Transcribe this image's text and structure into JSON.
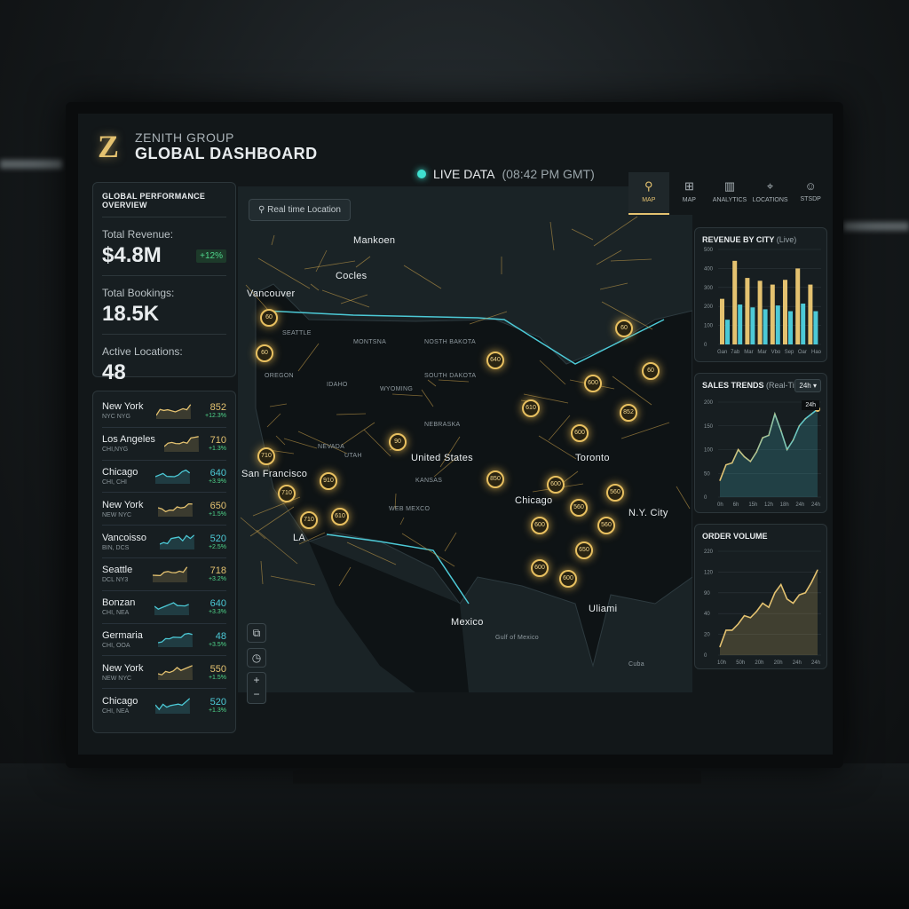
{
  "header": {
    "company": "ZENITH GROUP",
    "title": "GLOBAL DASHBOARD",
    "logo_letter": "Z",
    "live_label": "LIVE DATA",
    "live_time": "(08:42 PM GMT)"
  },
  "kpi": {
    "title": "GLOBAL PERFORMANCE OVERVIEW",
    "items": [
      {
        "label": "Total Revenue:",
        "value": "$4.8M",
        "badge": "+12%"
      },
      {
        "label": "Total Bookings:",
        "value": "18.5K"
      },
      {
        "label": "Active Locations:",
        "value": "48"
      }
    ]
  },
  "cities": [
    {
      "name": "New York",
      "sub": "NYC NYG",
      "value": "852",
      "change": "+12.3%",
      "trend": "gold"
    },
    {
      "name": "Los Angeles",
      "sub": "CHI,NYG",
      "value": "710",
      "change": "+1.3%",
      "trend": "gold"
    },
    {
      "name": "Chicago",
      "sub": "CHI, CHI",
      "value": "640",
      "change": "+3.9%",
      "trend": "teal"
    },
    {
      "name": "New York",
      "sub": "NEW NYC",
      "value": "650",
      "change": "+1.5%",
      "trend": "gold"
    },
    {
      "name": "Vancoisso",
      "sub": "BIN, DCS",
      "value": "520",
      "change": "+2.5%",
      "trend": "teal"
    },
    {
      "name": "Seattle",
      "sub": "DCL NY3",
      "value": "718",
      "change": "+3.2%",
      "trend": "gold"
    },
    {
      "name": "Bonzan",
      "sub": "CHI, NEA",
      "value": "640",
      "change": "+3.3%",
      "trend": "teal"
    },
    {
      "name": "Germaria",
      "sub": "CHI, OOA",
      "value": "48",
      "change": "+3.5%",
      "trend": "teal"
    },
    {
      "name": "New York",
      "sub": "NEW NYC",
      "value": "550",
      "change": "+1.5%",
      "trend": "gold"
    },
    {
      "name": "Chicago",
      "sub": "CHI, NEA",
      "value": "520",
      "change": "+1.3%",
      "trend": "teal"
    }
  ],
  "map": {
    "location_button": "Real time Location",
    "labels": [
      "Vancouver",
      "SEATTLE",
      "MONTSNA",
      "NOSTH BAKOTA",
      "SOUTH DAKOTA",
      "OREGON",
      "IDAHO",
      "WYOMING",
      "NEBRASKA",
      "NEVADA",
      "UTAH",
      "KANSAS",
      "WEB MEXCO",
      "United States",
      "Chicago",
      "San Francisco",
      "LA",
      "N.Y. City",
      "Toronto",
      "Mexico",
      "Gulf of Mexico",
      "Uliami",
      "Cuba",
      "Mankoen",
      "Cocles"
    ],
    "pins": [
      "60",
      "60",
      "710",
      "710",
      "710",
      "910",
      "610",
      "90",
      "640",
      "610",
      "850",
      "60",
      "852",
      "60",
      "600",
      "600",
      "600",
      "600",
      "600",
      "600",
      "560",
      "560",
      "560",
      "650"
    ]
  },
  "nav": [
    {
      "label": "MAP",
      "icon": "pin-icon",
      "active": true
    },
    {
      "label": "MAP",
      "icon": "map-icon"
    },
    {
      "label": "ANALYTICS",
      "icon": "bar-chart-icon"
    },
    {
      "label": "LOCATIONS",
      "icon": "location-icon"
    },
    {
      "label": "STSDP",
      "icon": "user-icon"
    }
  ],
  "colors": {
    "gold": "#e4c270",
    "teal": "#4cc9d6",
    "green": "#4fd68b",
    "bg": "#121719"
  },
  "chart_data": [
    {
      "type": "bar",
      "title": "REVENUE BY CITY",
      "subtitle": "(Live)",
      "categories": [
        "Gan",
        "7ab",
        "Mar",
        "Mar",
        "Vbo",
        "Sep",
        "Oar",
        "Hao"
      ],
      "series": [
        {
          "values": [
            240,
            440,
            350,
            335,
            315,
            340,
            400,
            315
          ],
          "color": "#e4c270"
        },
        {
          "values": [
            130,
            210,
            195,
            185,
            205,
            175,
            215,
            175
          ],
          "color": "#4cc9d6"
        }
      ],
      "yticks": [
        "0",
        "100",
        "200",
        "300",
        "400",
        "500"
      ],
      "ylim": [
        0,
        500
      ],
      "grid": true
    },
    {
      "type": "area",
      "title": "SALES TRENDS",
      "subtitle": "(Real-Time)",
      "range_select": "24h",
      "tooltip": "24h",
      "xticks": [
        "0h",
        "6h",
        "15h",
        "12h",
        "18h",
        "24h",
        "24h"
      ],
      "yticks": [
        "0",
        "50",
        "100",
        "150",
        "200"
      ],
      "ylim": [
        0,
        200
      ],
      "values": [
        35,
        68,
        72,
        100,
        85,
        75,
        95,
        125,
        130,
        175,
        140,
        100,
        120,
        150,
        165,
        175,
        185
      ],
      "grid": true
    },
    {
      "type": "area",
      "title": "ORDER VOLUME",
      "xticks": [
        "10h",
        "50h",
        "20h",
        "20h",
        "24h",
        "24h"
      ],
      "yticks": [
        "0",
        "20",
        "40",
        "90",
        "120",
        "220"
      ],
      "values": [
        0.4,
        1.2,
        1.2,
        1.5,
        1.9,
        1.8,
        2.1,
        2.5,
        2.3,
        3.0,
        3.4,
        2.7,
        2.5,
        2.9,
        3.0,
        3.5,
        4.1
      ],
      "grid": true
    }
  ]
}
